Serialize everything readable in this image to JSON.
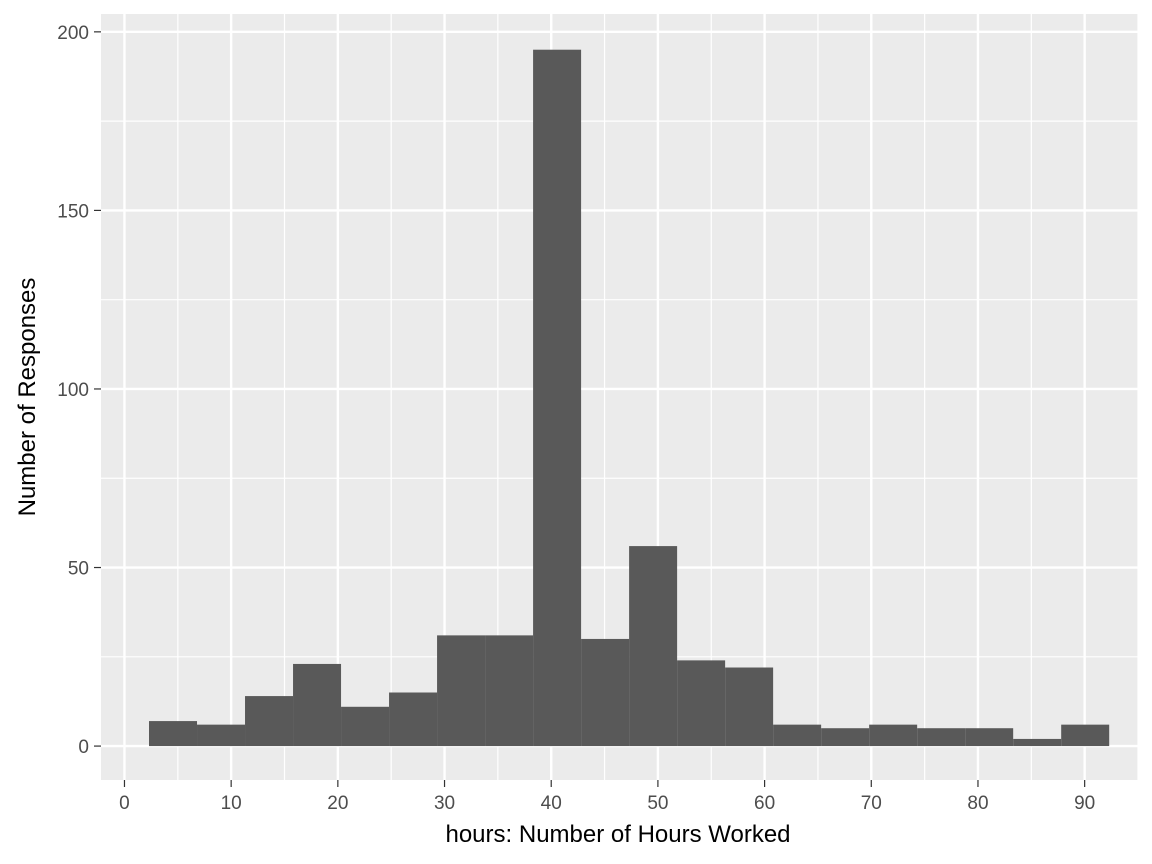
{
  "chart_data": {
    "type": "bar",
    "subtype": "histogram",
    "xlabel": "hours: Number of Hours Worked",
    "ylabel": "Number of Responses",
    "xlim": [
      -2.2,
      95.0
    ],
    "ylim": [
      -9.5,
      205
    ],
    "x_ticks": [
      0,
      10,
      20,
      30,
      40,
      50,
      60,
      70,
      80,
      90
    ],
    "y_ticks": [
      0,
      50,
      100,
      150,
      200
    ],
    "grid": true,
    "legend": "none",
    "bins": [
      {
        "x0": 2.3,
        "x1": 6.8,
        "count": 7
      },
      {
        "x0": 6.8,
        "x1": 11.3,
        "count": 6
      },
      {
        "x0": 11.3,
        "x1": 15.8,
        "count": 14
      },
      {
        "x0": 15.8,
        "x1": 20.3,
        "count": 23
      },
      {
        "x0": 20.3,
        "x1": 24.8,
        "count": 11
      },
      {
        "x0": 24.8,
        "x1": 29.3,
        "count": 15
      },
      {
        "x0": 29.3,
        "x1": 33.8,
        "count": 31
      },
      {
        "x0": 33.8,
        "x1": 38.3,
        "count": 31
      },
      {
        "x0": 38.3,
        "x1": 42.8,
        "count": 195
      },
      {
        "x0": 42.8,
        "x1": 47.3,
        "count": 30
      },
      {
        "x0": 47.3,
        "x1": 51.8,
        "count": 56
      },
      {
        "x0": 51.8,
        "x1": 56.3,
        "count": 24
      },
      {
        "x0": 56.3,
        "x1": 60.8,
        "count": 22
      },
      {
        "x0": 60.8,
        "x1": 65.3,
        "count": 6
      },
      {
        "x0": 65.3,
        "x1": 69.8,
        "count": 5
      },
      {
        "x0": 69.8,
        "x1": 74.3,
        "count": 6
      },
      {
        "x0": 74.3,
        "x1": 78.8,
        "count": 5
      },
      {
        "x0": 78.8,
        "x1": 83.3,
        "count": 5
      },
      {
        "x0": 83.3,
        "x1": 87.8,
        "count": 2
      },
      {
        "x0": 87.8,
        "x1": 92.3,
        "count": 6
      }
    ],
    "colors": {
      "panel_background": "#ebebeb",
      "grid": "#ffffff",
      "bar_fill": "#595959",
      "tick_text": "#4d4d4d",
      "tick_mark": "#333333"
    }
  }
}
